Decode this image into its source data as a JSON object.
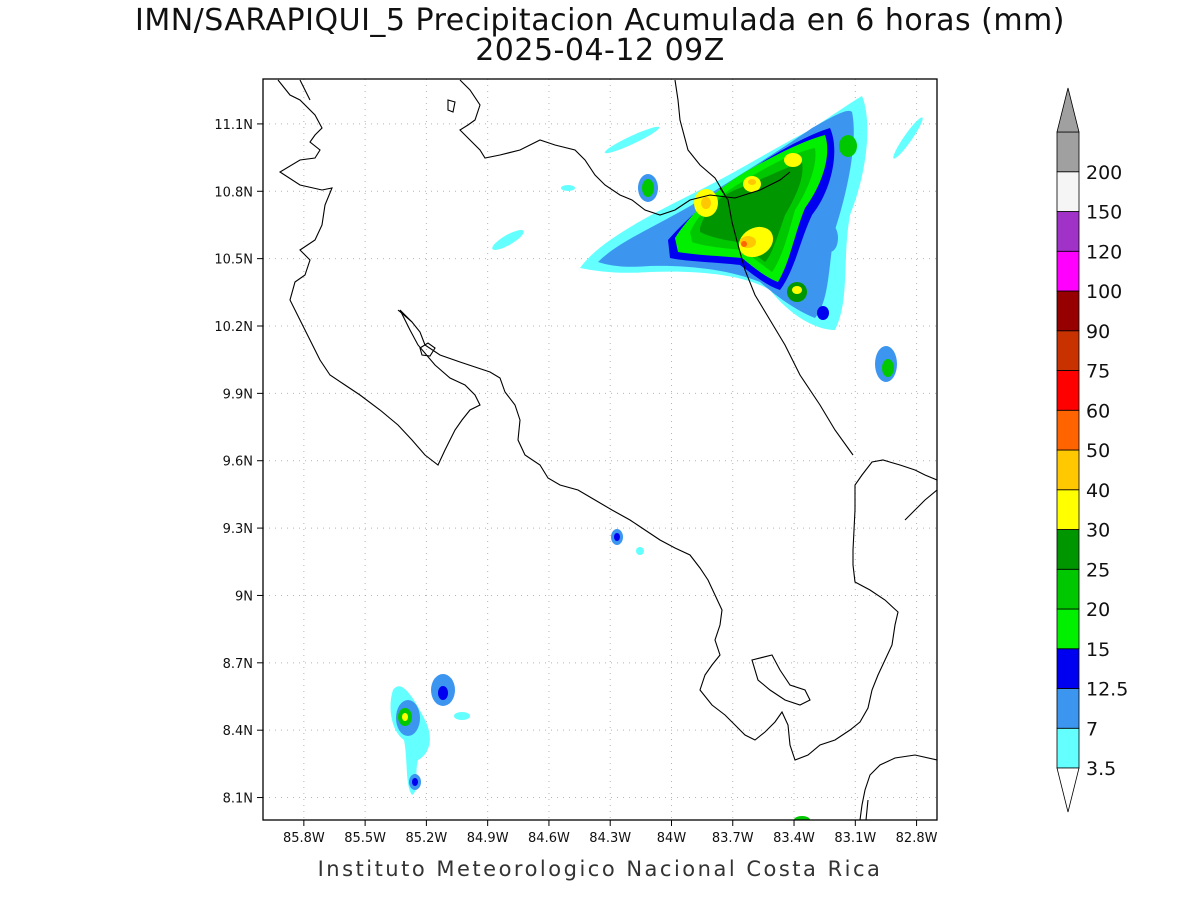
{
  "title": {
    "line1": "IMN/SARAPIQUI_5 Precipitacion Acumulada en 6 horas (mm)",
    "line2": "2025-04-12 09Z"
  },
  "footer": "Instituto Meteorologico Nacional Costa Rica",
  "map": {
    "lon_range": [
      -86.0,
      -82.7
    ],
    "lat_range": [
      8.0,
      11.3
    ],
    "lat_ticks": [
      {
        "value": 11.1,
        "label": "11.1N"
      },
      {
        "value": 10.8,
        "label": "10.8N"
      },
      {
        "value": 10.5,
        "label": "10.5N"
      },
      {
        "value": 10.2,
        "label": "10.2N"
      },
      {
        "value": 9.9,
        "label": "9.9N"
      },
      {
        "value": 9.6,
        "label": "9.6N"
      },
      {
        "value": 9.3,
        "label": "9.3N"
      },
      {
        "value": 9.0,
        "label": "9N"
      },
      {
        "value": 8.7,
        "label": "8.7N"
      },
      {
        "value": 8.4,
        "label": "8.4N"
      },
      {
        "value": 8.1,
        "label": "8.1N"
      }
    ],
    "lon_ticks": [
      {
        "value": -85.8,
        "label": "85.8W"
      },
      {
        "value": -85.5,
        "label": "85.5W"
      },
      {
        "value": -85.2,
        "label": "85.2W"
      },
      {
        "value": -84.9,
        "label": "84.9W"
      },
      {
        "value": -84.6,
        "label": "84.6W"
      },
      {
        "value": -84.3,
        "label": "84.3W"
      },
      {
        "value": -84.0,
        "label": "84W"
      },
      {
        "value": -83.7,
        "label": "83.7W"
      },
      {
        "value": -83.4,
        "label": "83.4W"
      },
      {
        "value": -83.1,
        "label": "83.1W"
      },
      {
        "value": -82.8,
        "label": "82.8W"
      }
    ],
    "grid": "dotted",
    "coastline_color": "#000000"
  },
  "colorbar": {
    "levels": [
      "3.5",
      "7",
      "12.5",
      "15",
      "20",
      "25",
      "30",
      "40",
      "50",
      "60",
      "75",
      "90",
      "100",
      "120",
      "150",
      "200"
    ],
    "colors": [
      "#64ffff",
      "#3c96f0",
      "#0000f0",
      "#00f000",
      "#00c800",
      "#009600",
      "#ffff00",
      "#ffc800",
      "#ff6400",
      "#ff0000",
      "#c83200",
      "#960000",
      "#ff00ff",
      "#a032c8",
      "#f5f5f5",
      "#a0a0a0"
    ],
    "under_color": "#ffffff",
    "over_color": "#a0a0a0"
  }
}
